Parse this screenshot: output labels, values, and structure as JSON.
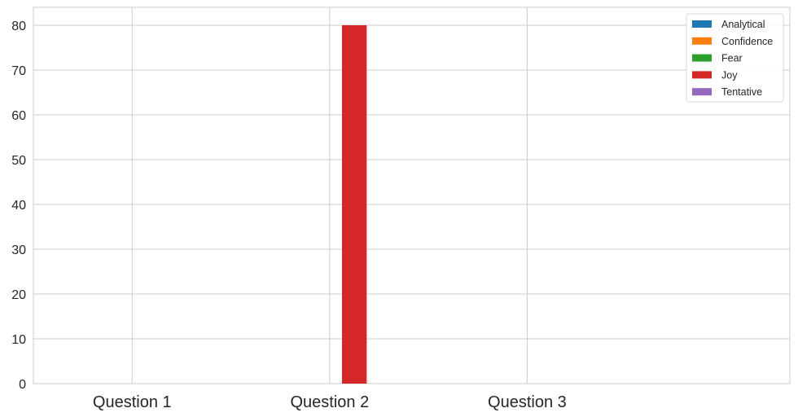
{
  "chart_data": {
    "type": "bar",
    "categories": [
      "Question 1",
      "Question 2",
      "Question 3"
    ],
    "series": [
      {
        "name": "Analytical",
        "color": "#1f77b4",
        "values": [
          0,
          0,
          0
        ]
      },
      {
        "name": "Confidence",
        "color": "#ff7f0e",
        "values": [
          0,
          0,
          0
        ]
      },
      {
        "name": "Fear",
        "color": "#2ca02c",
        "values": [
          0,
          0,
          0
        ]
      },
      {
        "name": "Joy",
        "color": "#d62728",
        "values": [
          0,
          80,
          0
        ]
      },
      {
        "name": "Tentative",
        "color": "#9467bd",
        "values": [
          0,
          0,
          0
        ]
      }
    ],
    "title": "",
    "xlabel": "",
    "ylabel": "",
    "ylim": [
      0,
      84
    ],
    "yticks": [
      0,
      10,
      20,
      30,
      40,
      50,
      60,
      70,
      80
    ],
    "grid": true,
    "legend_position": "top-right"
  }
}
